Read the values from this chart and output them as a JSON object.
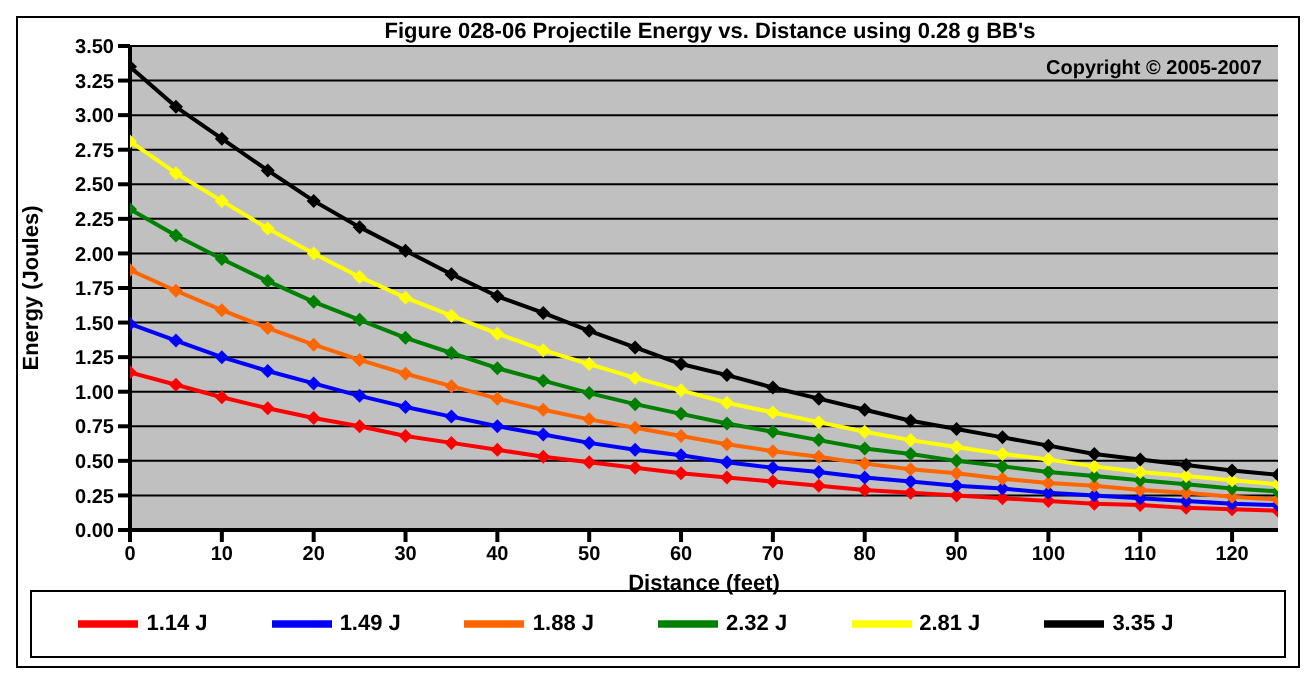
{
  "chart_data": {
    "type": "line",
    "title": "Figure 028-06  Projectile Energy vs. Distance using 0.28 g BB's",
    "xlabel": "Distance (feet)",
    "ylabel": "Energy (Joules)",
    "annotations": [
      "Copyright © 2005-2007"
    ],
    "x": [
      0,
      5,
      10,
      15,
      20,
      25,
      30,
      35,
      40,
      45,
      50,
      55,
      60,
      65,
      70,
      75,
      80,
      85,
      90,
      95,
      100,
      105,
      110,
      115,
      120,
      125
    ],
    "series": [
      {
        "name": "1.14 J",
        "color": "#ff0000",
        "values": [
          1.14,
          1.05,
          0.96,
          0.88,
          0.81,
          0.75,
          0.68,
          0.63,
          0.58,
          0.53,
          0.49,
          0.45,
          0.41,
          0.38,
          0.35,
          0.32,
          0.29,
          0.27,
          0.25,
          0.23,
          0.21,
          0.19,
          0.18,
          0.16,
          0.15,
          0.14
        ]
      },
      {
        "name": "1.49 J",
        "color": "#0000ff",
        "values": [
          1.49,
          1.37,
          1.25,
          1.15,
          1.06,
          0.97,
          0.89,
          0.82,
          0.75,
          0.69,
          0.63,
          0.58,
          0.54,
          0.49,
          0.45,
          0.42,
          0.38,
          0.35,
          0.32,
          0.3,
          0.27,
          0.25,
          0.23,
          0.21,
          0.19,
          0.18
        ]
      },
      {
        "name": "1.88 J",
        "color": "#ff6600",
        "values": [
          1.88,
          1.73,
          1.59,
          1.46,
          1.34,
          1.23,
          1.13,
          1.04,
          0.95,
          0.87,
          0.8,
          0.74,
          0.68,
          0.62,
          0.57,
          0.53,
          0.48,
          0.44,
          0.41,
          0.37,
          0.34,
          0.32,
          0.29,
          0.27,
          0.24,
          0.22
        ]
      },
      {
        "name": "2.32 J",
        "color": "#008000",
        "values": [
          2.32,
          2.13,
          1.96,
          1.8,
          1.65,
          1.52,
          1.39,
          1.28,
          1.17,
          1.08,
          0.99,
          0.91,
          0.84,
          0.77,
          0.71,
          0.65,
          0.59,
          0.55,
          0.5,
          0.46,
          0.42,
          0.39,
          0.36,
          0.33,
          0.3,
          0.28
        ]
      },
      {
        "name": "2.81 J",
        "color": "#ffff00",
        "values": [
          2.81,
          2.58,
          2.38,
          2.18,
          2.0,
          1.83,
          1.68,
          1.55,
          1.42,
          1.3,
          1.2,
          1.1,
          1.01,
          0.92,
          0.85,
          0.78,
          0.71,
          0.65,
          0.6,
          0.55,
          0.51,
          0.46,
          0.42,
          0.39,
          0.36,
          0.33
        ]
      },
      {
        "name": "3.35 J",
        "color": "#000000",
        "values": [
          3.35,
          3.06,
          2.83,
          2.6,
          2.38,
          2.19,
          2.02,
          1.85,
          1.69,
          1.57,
          1.44,
          1.32,
          1.2,
          1.12,
          1.03,
          0.95,
          0.87,
          0.79,
          0.73,
          0.67,
          0.61,
          0.55,
          0.51,
          0.47,
          0.43,
          0.4
        ]
      }
    ],
    "xlim": [
      0,
      125
    ],
    "xticks": [
      0,
      10,
      20,
      30,
      40,
      50,
      60,
      70,
      80,
      90,
      100,
      110,
      120
    ],
    "ylim": [
      0,
      3.5
    ],
    "yticks": [
      {
        "value": 0,
        "label": "0.00"
      },
      {
        "value": 0.25,
        "label": "0.25"
      },
      {
        "value": 0.5,
        "label": "0.50"
      },
      {
        "value": 0.75,
        "label": "0.75"
      },
      {
        "value": 1,
        "label": "1.00"
      },
      {
        "value": 1.25,
        "label": "1.25"
      },
      {
        "value": 1.5,
        "label": "1.50"
      },
      {
        "value": 1.75,
        "label": "1.75"
      },
      {
        "value": 2,
        "label": "2.00"
      },
      {
        "value": 2.25,
        "label": "2.25"
      },
      {
        "value": 2.5,
        "label": "2.50"
      },
      {
        "value": 2.75,
        "label": "2.75"
      },
      {
        "value": 3,
        "label": "3.00"
      },
      {
        "value": 3.25,
        "label": "3.25"
      },
      {
        "value": 3.5,
        "label": "3.50"
      }
    ],
    "grid": "y",
    "legend": "bottom",
    "marker": "diamond",
    "line_style": "solid"
  }
}
